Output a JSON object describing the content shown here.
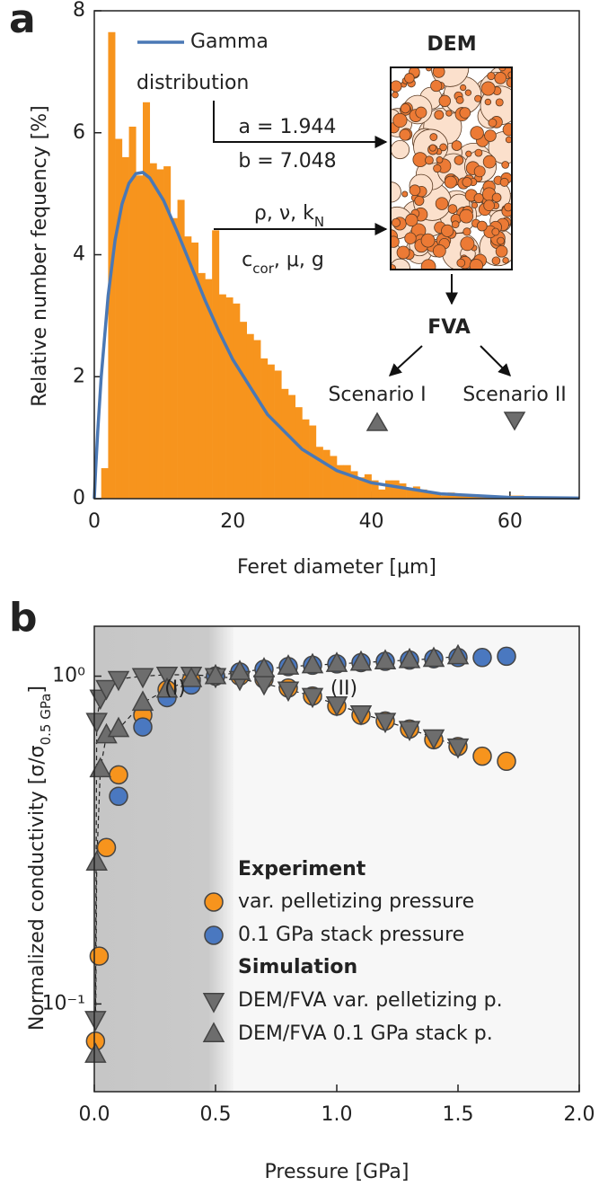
{
  "chart_data": [
    {
      "type": "histogram",
      "panel_label": "a",
      "xlabel": "Feret diameter [μm]",
      "ylabel": "Relative number fequency [%]",
      "bins": [
        0,
        1,
        2,
        3,
        4,
        5,
        6,
        7,
        8,
        9,
        10,
        11,
        12,
        13,
        14,
        15,
        16,
        17,
        18,
        19,
        20,
        21,
        22,
        23,
        24,
        25,
        26,
        27,
        28,
        29,
        30,
        31,
        32,
        33,
        34,
        35,
        36,
        37,
        38,
        39,
        40,
        41,
        42,
        43,
        44,
        45,
        46,
        47,
        48,
        49,
        50,
        51,
        52,
        53,
        54,
        55,
        56,
        57,
        58,
        59,
        60,
        61,
        62,
        63,
        64,
        65,
        66,
        67,
        68,
        69,
        70
      ],
      "values": [
        0,
        0.5,
        7.65,
        5.9,
        5.6,
        6.1,
        5.3,
        6.5,
        5.5,
        5.4,
        5.45,
        4.6,
        4.9,
        4.3,
        4.2,
        3.7,
        3.6,
        4.4,
        3.35,
        3.3,
        3.2,
        2.9,
        2.7,
        2.6,
        2.3,
        2.2,
        2.1,
        1.8,
        1.7,
        1.5,
        1.3,
        1.2,
        0.85,
        0.8,
        0.7,
        0.55,
        0.55,
        0.45,
        0.35,
        0.4,
        0.3,
        0.15,
        0.3,
        0.3,
        0.25,
        0.15,
        0.2,
        0.15,
        0.1,
        0.1,
        0.05,
        0.1,
        0.08,
        0.05,
        0.05,
        0.05,
        0.03,
        0.03,
        0.02,
        0.02,
        0.05,
        0.05,
        0.02,
        0.01,
        0.01,
        0.01,
        0,
        0,
        0,
        0
      ],
      "color": "#f7941d",
      "line": {
        "name": "Gamma distribution",
        "color": "#4a78b5",
        "x": [
          0,
          0.2,
          0.5,
          1,
          2,
          3,
          4,
          5,
          6,
          7,
          8,
          10,
          12,
          14,
          16,
          18,
          20,
          25,
          30,
          35,
          40,
          50,
          60,
          70
        ],
        "values": [
          0,
          0.49,
          1.11,
          2.0,
          3.33,
          4.24,
          4.83,
          5.17,
          5.33,
          5.35,
          5.26,
          4.89,
          4.37,
          3.81,
          3.25,
          2.74,
          2.28,
          1.38,
          0.81,
          0.46,
          0.26,
          0.08,
          0.02,
          0.01
        ]
      },
      "xlim": [
        0,
        70
      ],
      "xticks": [
        0,
        20,
        40,
        60
      ],
      "ylim": [
        0,
        8
      ],
      "yticks": [
        0,
        2,
        4,
        6,
        8
      ],
      "annotations": [
        "DEM",
        "a = 1.944",
        "b = 7.048",
        [
          "ρ, ν, k",
          "N"
        ],
        [
          "c",
          "cor",
          ", μ, g"
        ],
        "FVA",
        "Scenario I",
        "Scenario II"
      ]
    },
    {
      "type": "scatter",
      "panel_label": "b",
      "xlabel": "Pressure [GPa]",
      "ylabel": [
        "Normalized conductivity [σ/σ",
        "0.5 GPa",
        "]"
      ],
      "log_y": true,
      "xlim": [
        0,
        2.0
      ],
      "xticks": [
        {
          "value": 0,
          "label": "0.0"
        },
        0.5,
        {
          "value": 1,
          "label": "1.0"
        },
        1.5,
        {
          "value": 2,
          "label": "2.0"
        }
      ],
      "ylim": [
        0.054,
        1.42
      ],
      "yticks": [
        {
          "value": 0.1,
          "label": "10⁻¹"
        },
        {
          "value": 1,
          "label": "10⁰"
        }
      ],
      "annotations": [
        "(I)",
        "(II)"
      ],
      "legend_headings": [
        "Experiment",
        "Simulation"
      ],
      "series": [
        {
          "name": "var. pelletizing pressure",
          "color": "#f7941d",
          "marker": "circle",
          "x": [
            0.005,
            0.02,
            0.05,
            0.1,
            0.2,
            0.3,
            0.4,
            0.5,
            0.6,
            0.7,
            0.8,
            0.9,
            1.0,
            1.1,
            1.2,
            1.3,
            1.4,
            1.5,
            1.6,
            1.7
          ],
          "values": [
            0.077,
            0.14,
            0.3,
            0.5,
            0.76,
            0.91,
            0.97,
            1.0,
            1.0,
            0.98,
            0.92,
            0.87,
            0.81,
            0.76,
            0.73,
            0.69,
            0.64,
            0.61,
            0.57,
            0.55
          ]
        },
        {
          "name": "0.1 GPa stack pressure",
          "color": "#4a78c0",
          "marker": "circle",
          "x": [
            0.1,
            0.2,
            0.3,
            0.4,
            0.5,
            0.6,
            0.7,
            0.8,
            0.9,
            1.0,
            1.1,
            1.2,
            1.3,
            1.4,
            1.5,
            1.6,
            1.7
          ],
          "values": [
            0.43,
            0.7,
            0.86,
            0.94,
            1.0,
            1.03,
            1.05,
            1.07,
            1.08,
            1.09,
            1.1,
            1.11,
            1.12,
            1.13,
            1.14,
            1.14,
            1.15
          ]
        },
        {
          "name": "DEM/FVA var. pelletizing p.",
          "color": "#6d6d6d",
          "marker": "triangle-down",
          "x": [
            0.005,
            0.01,
            0.025,
            0.05,
            0.1,
            0.2,
            0.3,
            0.4,
            0.5,
            0.6,
            0.7,
            0.8,
            0.9,
            1.0,
            1.1,
            1.2,
            1.3,
            1.4,
            1.5
          ],
          "values": [
            0.09,
            0.73,
            0.86,
            0.92,
            0.98,
            1.0,
            1.01,
            1.01,
            1.0,
            0.98,
            0.95,
            0.91,
            0.87,
            0.82,
            0.77,
            0.73,
            0.69,
            0.65,
            0.61
          ]
        },
        {
          "name": "DEM/FVA 0.1 GPa stack p.",
          "color": "#6d6d6d",
          "marker": "triangle-up",
          "x": [
            0.005,
            0.01,
            0.025,
            0.05,
            0.1,
            0.2,
            0.3,
            0.4,
            0.5,
            0.6,
            0.7,
            0.8,
            0.9,
            1.0,
            1.1,
            1.2,
            1.3,
            1.4,
            1.5
          ],
          "values": [
            0.07,
            0.27,
            0.52,
            0.66,
            0.69,
            0.83,
            0.91,
            0.98,
            1.0,
            1.03,
            1.05,
            1.07,
            1.08,
            1.09,
            1.1,
            1.11,
            1.12,
            1.13,
            1.15
          ]
        }
      ]
    }
  ]
}
